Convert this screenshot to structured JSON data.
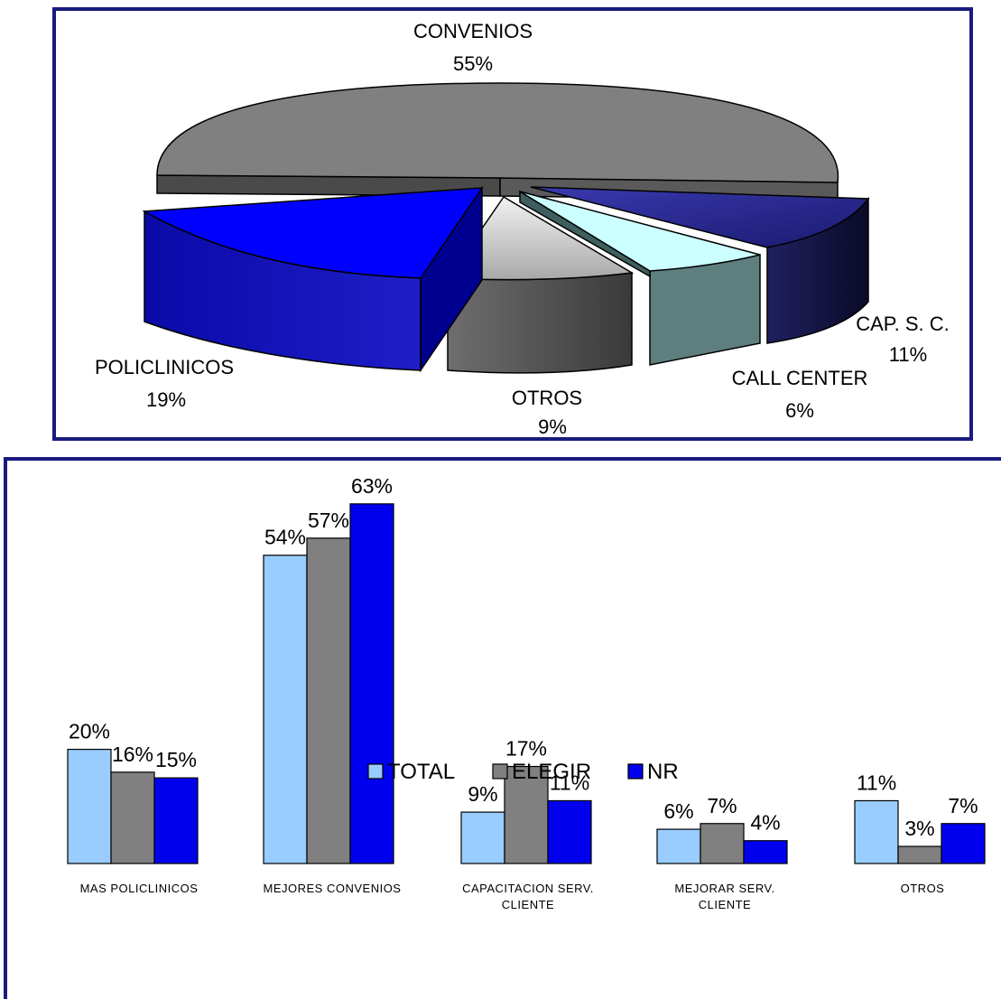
{
  "chart_data": [
    {
      "type": "pie",
      "three_d": true,
      "exploded": true,
      "slices": [
        {
          "label": "CONVENIOS",
          "value": 55,
          "value_label": "55%",
          "color": "#808080"
        },
        {
          "label": "CAP. S. C.",
          "value": 11,
          "value_label": "11%",
          "color": "#2a2a8a"
        },
        {
          "label": "CALL CENTER",
          "value": 6,
          "value_label": "6%",
          "color": "#ccffff"
        },
        {
          "label": "OTROS",
          "value": 9,
          "value_label": "9%",
          "color": "#c0c0c0"
        },
        {
          "label": "POLICLINICOS",
          "value": 19,
          "value_label": "19%",
          "color": "#0000ff"
        }
      ]
    },
    {
      "type": "bar",
      "categories": [
        "MAS POLICLINICOS",
        "MEJORES CONVENIOS",
        "CAPACITACION  SERV. CLIENTE",
        "MEJORAR SERV. CLIENTE",
        "OTROS"
      ],
      "series": [
        {
          "name": "TOTAL",
          "values": [
            20,
            54,
            9,
            6,
            11
          ],
          "labels": [
            "20%",
            "54%",
            "9%",
            "6%",
            "11%"
          ],
          "color": "#99ccff"
        },
        {
          "name": "ELEGIR",
          "values": [
            16,
            57,
            17,
            7,
            3
          ],
          "labels": [
            "16%",
            "57%",
            "17%",
            "7%",
            "3%"
          ],
          "color": "#808080"
        },
        {
          "name": "NR",
          "values": [
            15,
            63,
            11,
            4,
            7
          ],
          "labels": [
            "15%",
            "63%",
            "11%",
            "4%",
            "7%"
          ],
          "color": "#0000ee"
        }
      ],
      "ylim": [
        0,
        70
      ],
      "grid": false,
      "legend_position": "bottom"
    }
  ]
}
